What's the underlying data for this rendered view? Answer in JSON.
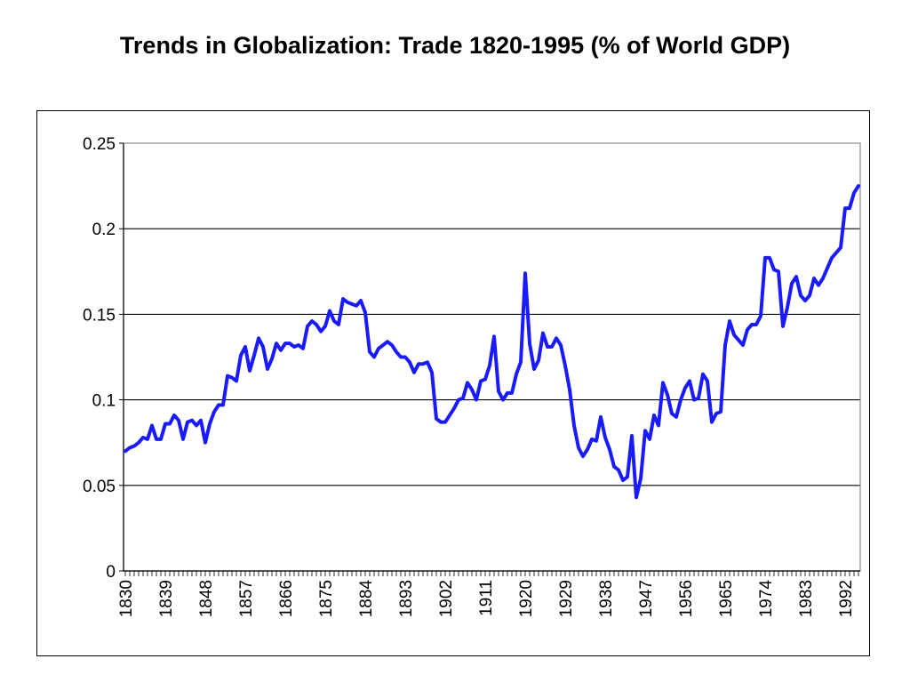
{
  "page": {
    "title": "Trends in Globalization: Trade 1820-1995 (% of World GDP)"
  },
  "chart_data": {
    "type": "line",
    "title": "Trends in Globalization: Trade 1820-1995 (% of World GDP)",
    "xlabel": "",
    "ylabel": "",
    "x_range": [
      1830,
      1995
    ],
    "ylim": [
      0,
      0.25
    ],
    "y_ticks": [
      "0",
      "0.05",
      "0.1",
      "0.15",
      "0.2",
      "0.25"
    ],
    "x_tick_labels": [
      "1830",
      "1839",
      "1848",
      "1857",
      "1866",
      "1875",
      "1884",
      "1893",
      "1902",
      "1911",
      "1920",
      "1929",
      "1938",
      "1947",
      "1956",
      "1965",
      "1974",
      "1983",
      "1992"
    ],
    "grid": "horizontal",
    "legend": "none",
    "line_color": "#1a1aff",
    "series": [
      {
        "x": [
          1830,
          1831,
          1832,
          1833,
          1834,
          1835,
          1836,
          1837,
          1838,
          1839,
          1840,
          1841,
          1842,
          1843,
          1844,
          1845,
          1846,
          1847,
          1848,
          1849,
          1850,
          1851,
          1852,
          1853,
          1854,
          1855,
          1856,
          1857,
          1858,
          1859,
          1860,
          1861,
          1862,
          1863,
          1864,
          1865,
          1866,
          1867,
          1868,
          1869,
          1870,
          1871,
          1872,
          1873,
          1874,
          1875,
          1876,
          1877,
          1878,
          1879,
          1880,
          1881,
          1882,
          1883,
          1884,
          1885,
          1886,
          1887,
          1888,
          1889,
          1890,
          1891,
          1892,
          1893,
          1894,
          1895,
          1896,
          1897,
          1898,
          1899,
          1900,
          1901,
          1902,
          1903,
          1904,
          1905,
          1906,
          1907,
          1908,
          1909,
          1910,
          1911,
          1912,
          1913,
          1914,
          1915,
          1916,
          1917,
          1918,
          1919,
          1920,
          1921,
          1922,
          1923,
          1924,
          1925,
          1926,
          1927,
          1928,
          1929,
          1930,
          1931,
          1932,
          1933,
          1934,
          1935,
          1936,
          1937,
          1938,
          1939,
          1940,
          1941,
          1942,
          1943,
          1944,
          1945,
          1946,
          1947,
          1948,
          1949,
          1950,
          1951,
          1952,
          1953,
          1954,
          1955,
          1956,
          1957,
          1958,
          1959,
          1960,
          1961,
          1962,
          1963,
          1964,
          1965,
          1966,
          1967,
          1968,
          1969,
          1970,
          1971,
          1972,
          1973,
          1974,
          1975,
          1976,
          1977,
          1978,
          1979,
          1980,
          1981,
          1982,
          1983,
          1984,
          1985,
          1986,
          1987,
          1988,
          1989,
          1990,
          1991,
          1992,
          1993,
          1994,
          1995
        ],
        "values": [
          0.07,
          0.072,
          0.073,
          0.075,
          0.078,
          0.077,
          0.085,
          0.077,
          0.077,
          0.086,
          0.086,
          0.091,
          0.088,
          0.077,
          0.087,
          0.088,
          0.085,
          0.088,
          0.075,
          0.086,
          0.093,
          0.097,
          0.097,
          0.114,
          0.113,
          0.111,
          0.126,
          0.131,
          0.117,
          0.126,
          0.136,
          0.131,
          0.118,
          0.124,
          0.133,
          0.129,
          0.133,
          0.133,
          0.131,
          0.132,
          0.13,
          0.143,
          0.146,
          0.144,
          0.14,
          0.143,
          0.152,
          0.146,
          0.144,
          0.159,
          0.157,
          0.156,
          0.155,
          0.158,
          0.151,
          0.128,
          0.125,
          0.13,
          0.132,
          0.134,
          0.132,
          0.128,
          0.125,
          0.125,
          0.122,
          0.116,
          0.121,
          0.121,
          0.122,
          0.116,
          0.089,
          0.087,
          0.087,
          0.091,
          0.095,
          0.1,
          0.101,
          0.11,
          0.106,
          0.1,
          0.111,
          0.112,
          0.12,
          0.137,
          0.105,
          0.1,
          0.104,
          0.104,
          0.115,
          0.122,
          0.174,
          0.133,
          0.118,
          0.123,
          0.139,
          0.131,
          0.131,
          0.136,
          0.132,
          0.12,
          0.106,
          0.085,
          0.072,
          0.067,
          0.071,
          0.077,
          0.076,
          0.09,
          0.078,
          0.071,
          0.061,
          0.059,
          0.053,
          0.055,
          0.079,
          0.043,
          0.054,
          0.082,
          0.077,
          0.091,
          0.085,
          0.11,
          0.103,
          0.092,
          0.09,
          0.1,
          0.107,
          0.111,
          0.1,
          0.101,
          0.115,
          0.111,
          0.087,
          0.092,
          0.093,
          0.132,
          0.146,
          0.138,
          0.135,
          0.132,
          0.141,
          0.144,
          0.144,
          0.149,
          0.183,
          0.183,
          0.176,
          0.175,
          0.143,
          0.154,
          0.168,
          0.172,
          0.161,
          0.158,
          0.161,
          0.171,
          0.167,
          0.171,
          0.177,
          0.183,
          0.186,
          0.189,
          0.212,
          0.212,
          0.221,
          0.225
        ]
      }
    ]
  }
}
